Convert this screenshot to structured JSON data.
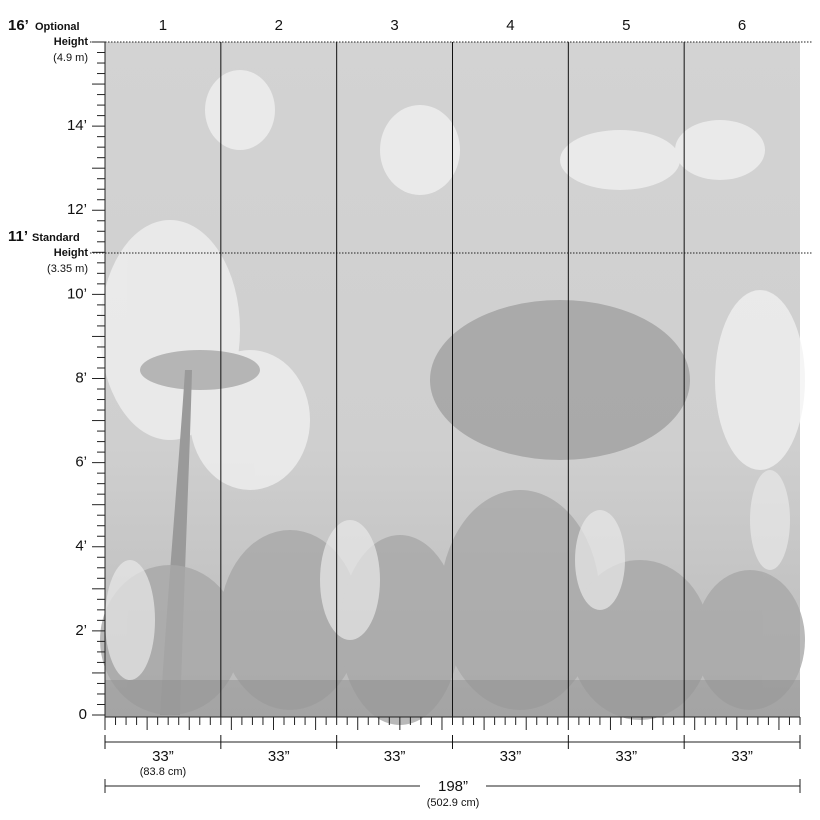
{
  "optional": {
    "height": "16’",
    "label": "Optional",
    "label2": "Height",
    "metric": "(4.9 m)"
  },
  "standard": {
    "height": "11’",
    "label": "Standard",
    "label2": "Height",
    "metric": "(3.35 m)"
  },
  "panels": [
    "1",
    "2",
    "3",
    "4",
    "5",
    "6"
  ],
  "height_marks": [
    "14’",
    "12’",
    "10’",
    "8’",
    "6’",
    "4’",
    "2’",
    "0"
  ],
  "panel_widths": [
    "33”",
    "33”",
    "33”",
    "33”",
    "33”",
    "33”"
  ],
  "panel_width_metric": "(83.8 cm)",
  "total_width": "198”",
  "total_width_metric": "(502.9 cm)"
}
